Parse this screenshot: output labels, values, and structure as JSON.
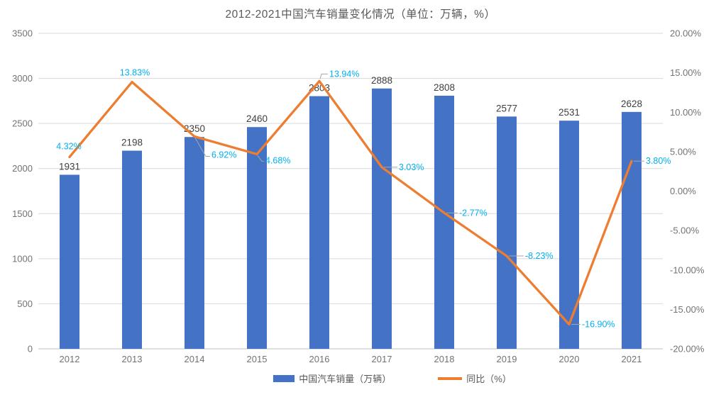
{
  "title": "2012-2021中国汽车销量变化情况（单位：万辆，%）",
  "legend": {
    "items": [
      {
        "label": "中国汽车销量（万辆）",
        "swatch": "bar-swatch"
      },
      {
        "label": "同比（%）",
        "swatch": "line-swatch"
      }
    ]
  },
  "colors": {
    "bar": "#4472C4",
    "line": "#ED7D31",
    "percent_label": "#00B0F0",
    "value_label": "#404040",
    "axis_label": "#737373",
    "gridline": "#D9D9D9",
    "axis_line": "#BFBFBF",
    "title": "#595959",
    "leader": "#A6A6A6"
  },
  "chart_data": {
    "type": "combo",
    "title": "2012-2021中国汽车销量变化情况（单位：万辆，%）",
    "categories": [
      "2012",
      "2013",
      "2014",
      "2015",
      "2016",
      "2017",
      "2018",
      "2019",
      "2020",
      "2021"
    ],
    "series": [
      {
        "name": "中国汽车销量（万辆）",
        "type": "bar",
        "axis": "left",
        "color": "#4472C4",
        "values": [
          1931,
          2198,
          2350,
          2460,
          2803,
          2888,
          2808,
          2577,
          2531,
          2628
        ],
        "labels": [
          "1931",
          "2198",
          "2350",
          "2460",
          "2803",
          "2888",
          "2808",
          "2577",
          "2531",
          "2628"
        ]
      },
      {
        "name": "同比（%）",
        "type": "line",
        "axis": "right",
        "color": "#ED7D31",
        "values": [
          4.32,
          13.83,
          6.92,
          4.68,
          13.94,
          3.03,
          -2.77,
          -8.23,
          -16.9,
          3.8
        ],
        "labels": [
          "4.32%",
          "13.83%",
          "6.92%",
          "4.68%",
          "13.94%",
          "3.03%",
          "-2.77%",
          "-8.23%",
          "-16.90%",
          "3.80%"
        ]
      }
    ],
    "left_axis": {
      "min": 0,
      "max": 3500,
      "tick_labels": [
        "3500",
        "3000",
        "2500",
        "2000",
        "1500",
        "1000",
        "500",
        "0"
      ]
    },
    "right_axis": {
      "min": -20,
      "max": 20,
      "tick_labels": [
        "20.00%",
        "15.00%",
        "10.00%",
        "5.00%",
        "0.00%",
        "-5.00%",
        "-10.00%",
        "-15.00%",
        "-20.00%"
      ]
    },
    "grid": true,
    "legend_position": "bottom"
  }
}
